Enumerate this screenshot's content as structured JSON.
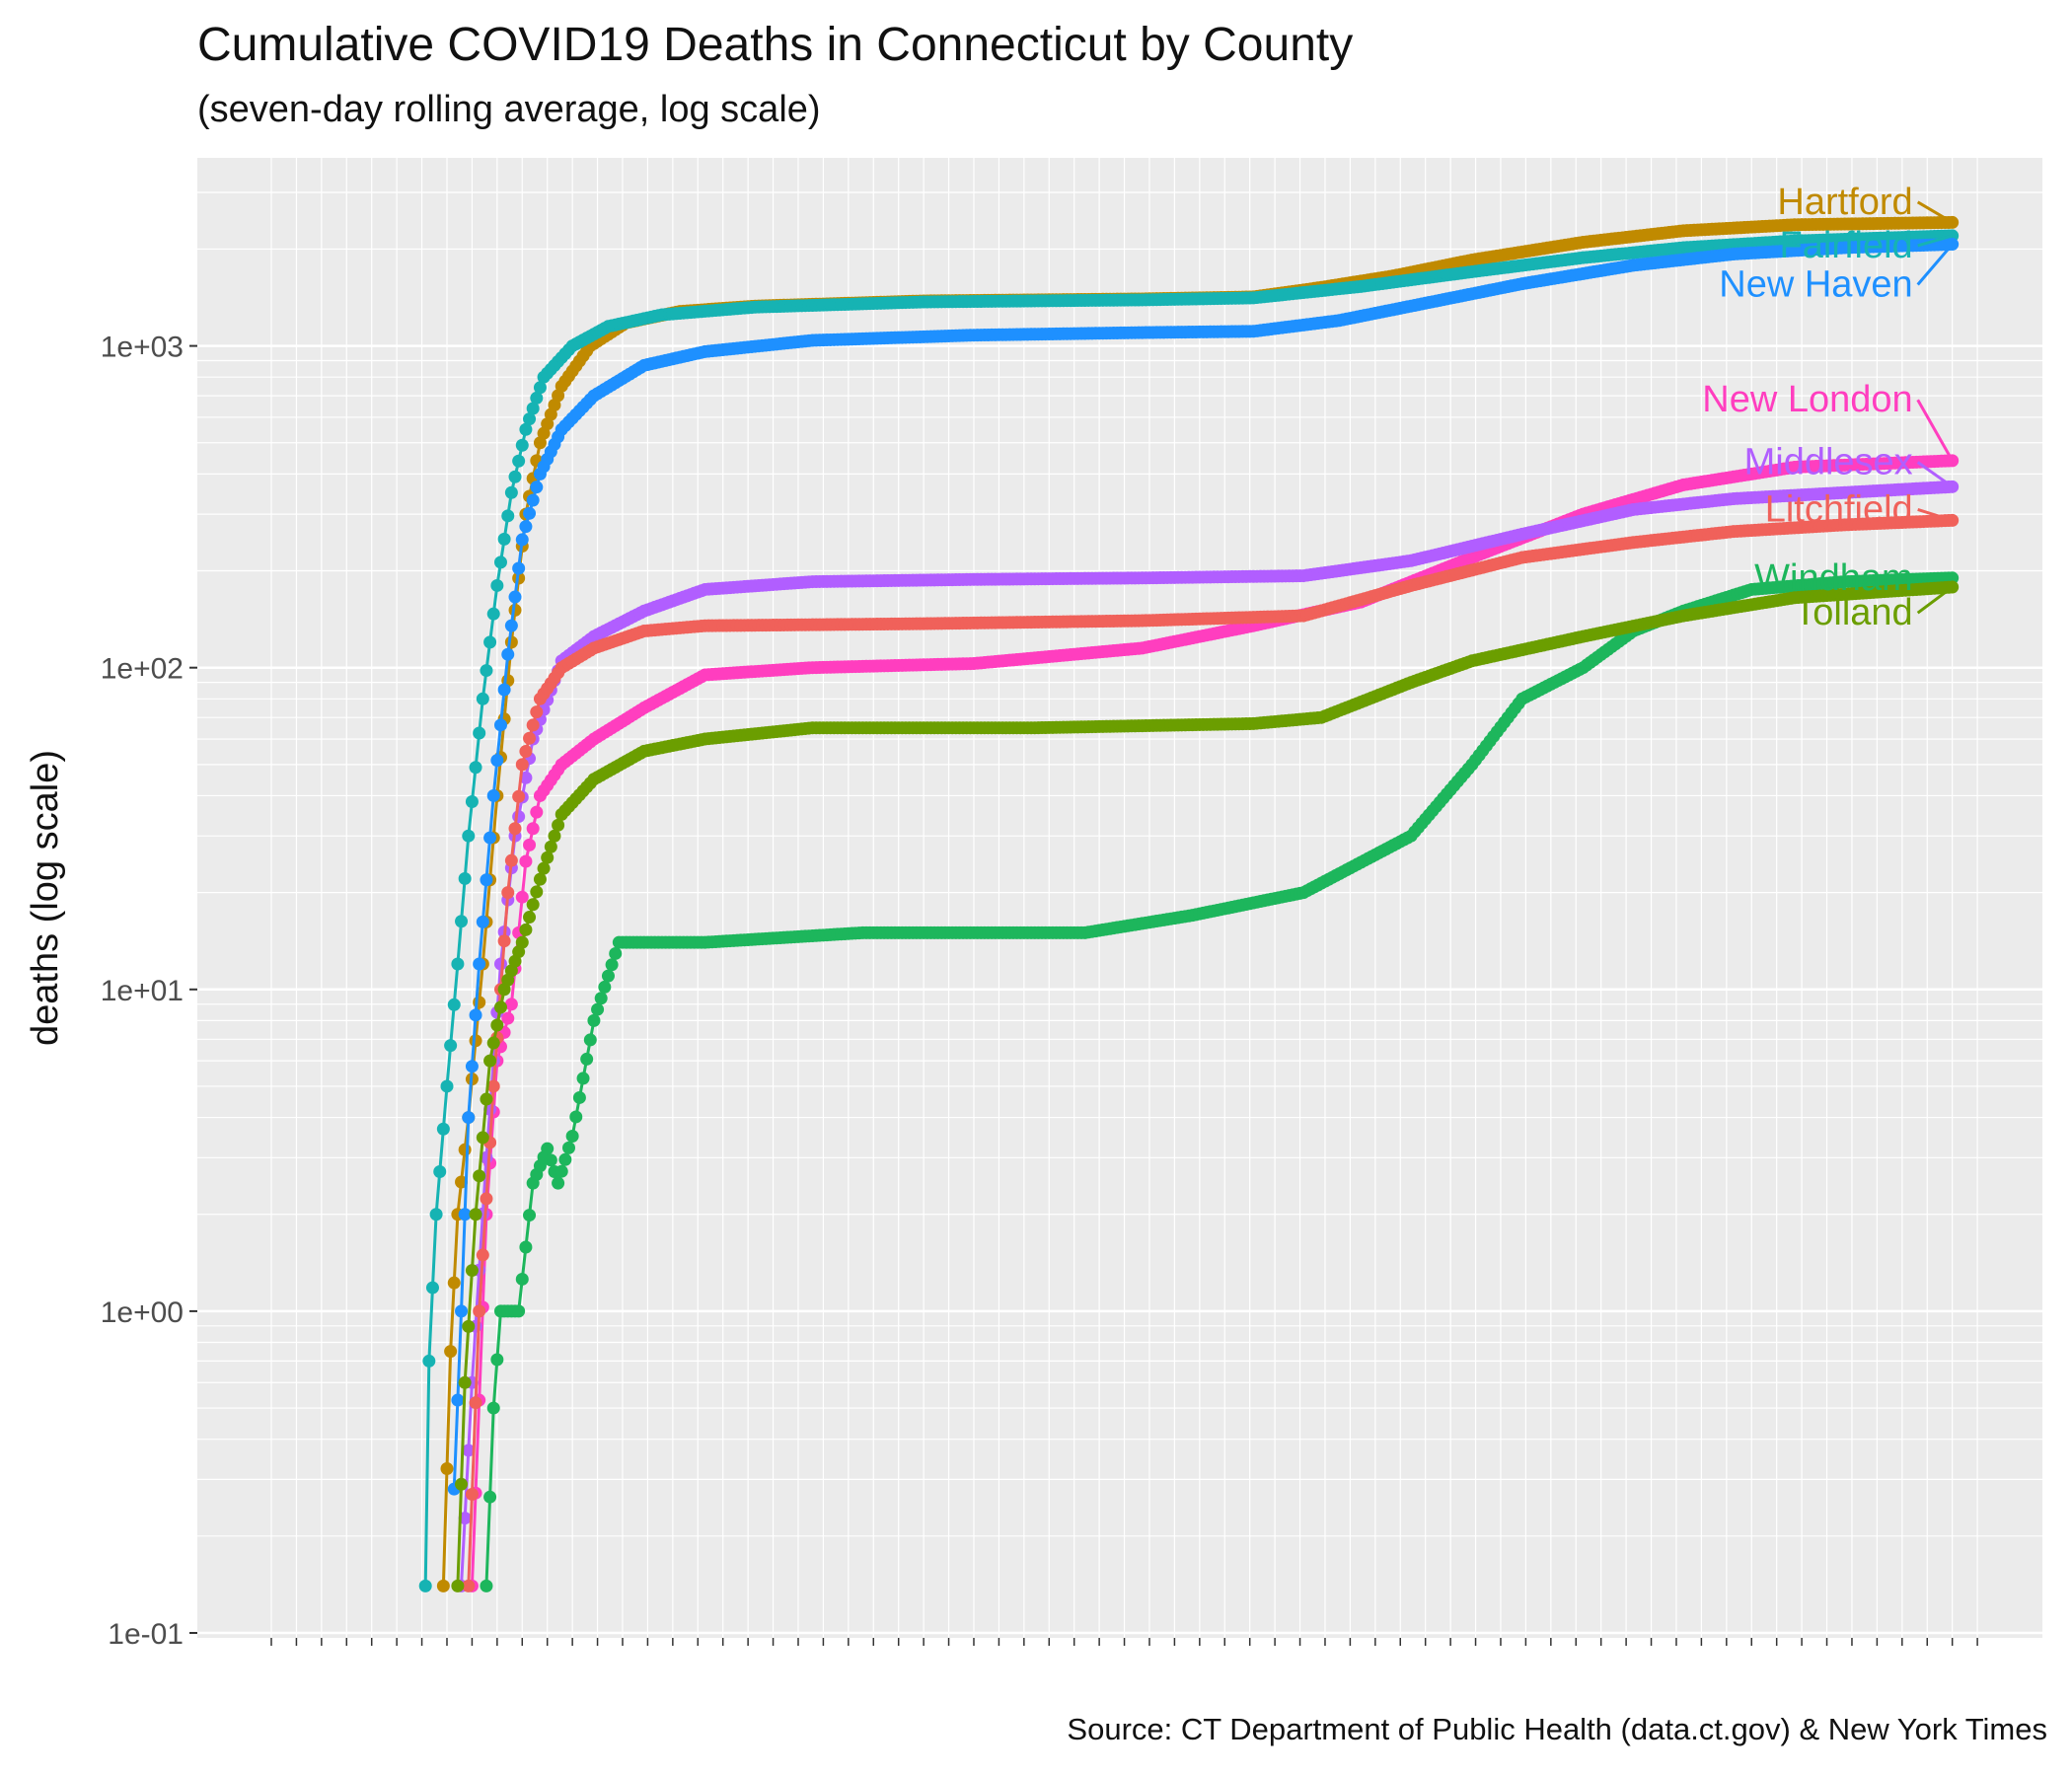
{
  "title": "Cumulative COVID19 Deaths in Connecticut by County",
  "subtitle": "(seven-day rolling average, log scale)",
  "caption": "Source: CT Department of Public Health (data.ct.gov) & New York Times",
  "chart_data": {
    "type": "line",
    "title": "Cumulative COVID19 Deaths in Connecticut by County",
    "subtitle": "(seven-day rolling average, log scale)",
    "ylabel": "deaths (log scale)",
    "xlabel": "",
    "y_scale": "log",
    "ylim": [
      0.1,
      3000
    ],
    "y_ticks": [
      0.1,
      1,
      10,
      100,
      1000
    ],
    "y_tick_labels": [
      "1e-01",
      "1e+00",
      "1e+01",
      "1e+02",
      "1e+03"
    ],
    "xlim": [
      "2020-02-01",
      "2021-05-25"
    ],
    "x_tick_labels_overlapping": true,
    "grid": true,
    "legend": "direct labels at right end of lines",
    "series": [
      {
        "name": "Hartford",
        "color": "#C08A00",
        "label_anchor_value": 2800,
        "points": [
          [
            "2020-03-20",
            0.14
          ],
          [
            "2020-03-22",
            0.75
          ],
          [
            "2020-03-24",
            2
          ],
          [
            "2020-03-27",
            4
          ],
          [
            "2020-03-31",
            12
          ],
          [
            "2020-04-04",
            40
          ],
          [
            "2020-04-08",
            120
          ],
          [
            "2020-04-12",
            300
          ],
          [
            "2020-04-16",
            500
          ],
          [
            "2020-04-22",
            750
          ],
          [
            "2020-04-30",
            1000
          ],
          [
            "2020-05-10",
            1180
          ],
          [
            "2020-05-25",
            1280
          ],
          [
            "2020-06-15",
            1330
          ],
          [
            "2020-08-01",
            1380
          ],
          [
            "2020-10-01",
            1400
          ],
          [
            "2020-11-01",
            1420
          ],
          [
            "2020-11-20",
            1520
          ],
          [
            "2020-12-10",
            1650
          ],
          [
            "2021-01-01",
            1850
          ],
          [
            "2021-02-01",
            2100
          ],
          [
            "2021-03-01",
            2280
          ],
          [
            "2021-04-01",
            2380
          ],
          [
            "2021-05-15",
            2420
          ]
        ]
      },
      {
        "name": "Fairfield",
        "color": "#16B3B3",
        "label_anchor_value": 2050,
        "points": [
          [
            "2020-03-15",
            0.14
          ],
          [
            "2020-03-16",
            0.7
          ],
          [
            "2020-03-18",
            2
          ],
          [
            "2020-03-21",
            5
          ],
          [
            "2020-03-24",
            12
          ],
          [
            "2020-03-27",
            30
          ],
          [
            "2020-03-31",
            80
          ],
          [
            "2020-04-04",
            180
          ],
          [
            "2020-04-08",
            350
          ],
          [
            "2020-04-12",
            550
          ],
          [
            "2020-04-17",
            800
          ],
          [
            "2020-04-25",
            1000
          ],
          [
            "2020-05-05",
            1150
          ],
          [
            "2020-05-20",
            1250
          ],
          [
            "2020-06-15",
            1320
          ],
          [
            "2020-08-01",
            1370
          ],
          [
            "2020-10-01",
            1390
          ],
          [
            "2020-11-01",
            1410
          ],
          [
            "2020-12-01",
            1530
          ],
          [
            "2021-01-01",
            1700
          ],
          [
            "2021-02-01",
            1880
          ],
          [
            "2021-03-01",
            2020
          ],
          [
            "2021-04-01",
            2120
          ],
          [
            "2021-05-15",
            2200
          ]
        ]
      },
      {
        "name": "New Haven",
        "color": "#1E90FF",
        "label_anchor_value": 1550,
        "points": [
          [
            "2020-03-23",
            0.28
          ],
          [
            "2020-03-25",
            1
          ],
          [
            "2020-03-27",
            4
          ],
          [
            "2020-03-30",
            12
          ],
          [
            "2020-04-03",
            40
          ],
          [
            "2020-04-07",
            110
          ],
          [
            "2020-04-11",
            250
          ],
          [
            "2020-04-16",
            400
          ],
          [
            "2020-04-22",
            550
          ],
          [
            "2020-05-01",
            700
          ],
          [
            "2020-05-15",
            870
          ],
          [
            "2020-06-01",
            960
          ],
          [
            "2020-07-01",
            1040
          ],
          [
            "2020-08-15",
            1080
          ],
          [
            "2020-10-01",
            1100
          ],
          [
            "2020-11-01",
            1110
          ],
          [
            "2020-11-25",
            1200
          ],
          [
            "2020-12-15",
            1330
          ],
          [
            "2021-01-15",
            1560
          ],
          [
            "2021-02-15",
            1780
          ],
          [
            "2021-03-15",
            1930
          ],
          [
            "2021-04-15",
            2020
          ],
          [
            "2021-05-15",
            2070
          ]
        ]
      },
      {
        "name": "New London",
        "color": "#FF3EBF",
        "label_anchor_value": 680,
        "points": [
          [
            "2020-03-28",
            0.14
          ],
          [
            "2020-04-01",
            2
          ],
          [
            "2020-04-04",
            6
          ],
          [
            "2020-04-08",
            9
          ],
          [
            "2020-04-12",
            25
          ],
          [
            "2020-04-16",
            40
          ],
          [
            "2020-04-22",
            50
          ],
          [
            "2020-05-01",
            60
          ],
          [
            "2020-05-15",
            75
          ],
          [
            "2020-06-01",
            95
          ],
          [
            "2020-07-01",
            100
          ],
          [
            "2020-08-15",
            103
          ],
          [
            "2020-10-01",
            115
          ],
          [
            "2020-11-01",
            135
          ],
          [
            "2020-12-01",
            160
          ],
          [
            "2021-01-01",
            220
          ],
          [
            "2021-02-01",
            300
          ],
          [
            "2021-03-01",
            370
          ],
          [
            "2021-04-01",
            420
          ],
          [
            "2021-05-15",
            440
          ]
        ]
      },
      {
        "name": "Middlesex",
        "color": "#B15EFF",
        "label_anchor_value": 435,
        "points": [
          [
            "2020-03-25",
            0.14
          ],
          [
            "2020-03-28",
            0.6
          ],
          [
            "2020-04-01",
            3
          ],
          [
            "2020-04-05",
            12
          ],
          [
            "2020-04-09",
            30
          ],
          [
            "2020-04-14",
            60
          ],
          [
            "2020-04-22",
            105
          ],
          [
            "2020-05-01",
            125
          ],
          [
            "2020-05-15",
            150
          ],
          [
            "2020-06-01",
            175
          ],
          [
            "2020-07-01",
            185
          ],
          [
            "2020-08-15",
            188
          ],
          [
            "2020-10-01",
            190
          ],
          [
            "2020-11-15",
            193
          ],
          [
            "2020-12-15",
            215
          ],
          [
            "2021-01-15",
            260
          ],
          [
            "2021-02-15",
            310
          ],
          [
            "2021-03-15",
            335
          ],
          [
            "2021-04-15",
            350
          ],
          [
            "2021-05-15",
            365
          ]
        ]
      },
      {
        "name": "Litchfield",
        "color": "#F0615A",
        "label_anchor_value": 310,
        "points": [
          [
            "2020-03-27",
            0.14
          ],
          [
            "2020-03-30",
            1
          ],
          [
            "2020-04-03",
            5
          ],
          [
            "2020-04-07",
            20
          ],
          [
            "2020-04-11",
            50
          ],
          [
            "2020-04-16",
            80
          ],
          [
            "2020-04-22",
            100
          ],
          [
            "2020-05-01",
            115
          ],
          [
            "2020-05-15",
            130
          ],
          [
            "2020-06-01",
            135
          ],
          [
            "2020-08-01",
            137
          ],
          [
            "2020-10-01",
            140
          ],
          [
            "2020-11-15",
            145
          ],
          [
            "2020-12-15",
            180
          ],
          [
            "2021-01-15",
            220
          ],
          [
            "2021-02-15",
            245
          ],
          [
            "2021-03-15",
            265
          ],
          [
            "2021-04-15",
            278
          ],
          [
            "2021-05-15",
            287
          ]
        ]
      },
      {
        "name": "Windham",
        "color": "#1DB65C",
        "label_anchor_value": 190,
        "points": [
          [
            "2020-04-01",
            0.14
          ],
          [
            "2020-04-03",
            0.5
          ],
          [
            "2020-04-05",
            1
          ],
          [
            "2020-04-10",
            1
          ],
          [
            "2020-04-14",
            2.5
          ],
          [
            "2020-04-18",
            3.2
          ],
          [
            "2020-04-21",
            2.5
          ],
          [
            "2020-04-25",
            3.5
          ],
          [
            "2020-05-01",
            8
          ],
          [
            "2020-05-08",
            14
          ],
          [
            "2020-06-01",
            14
          ],
          [
            "2020-07-15",
            15
          ],
          [
            "2020-09-15",
            15
          ],
          [
            "2020-10-15",
            17
          ],
          [
            "2020-11-15",
            20
          ],
          [
            "2020-12-15",
            30
          ],
          [
            "2021-01-01",
            50
          ],
          [
            "2021-01-15",
            80
          ],
          [
            "2021-02-01",
            100
          ],
          [
            "2021-02-15",
            130
          ],
          [
            "2021-03-01",
            150
          ],
          [
            "2021-03-20",
            175
          ],
          [
            "2021-04-15",
            185
          ],
          [
            "2021-05-15",
            190
          ]
        ]
      },
      {
        "name": "Tolland",
        "color": "#6B9E00",
        "label_anchor_value": 148,
        "points": [
          [
            "2020-03-24",
            0.14
          ],
          [
            "2020-03-26",
            0.6
          ],
          [
            "2020-03-29",
            2
          ],
          [
            "2020-04-02",
            6
          ],
          [
            "2020-04-06",
            10
          ],
          [
            "2020-04-11",
            14
          ],
          [
            "2020-04-16",
            22
          ],
          [
            "2020-04-22",
            35
          ],
          [
            "2020-05-01",
            45
          ],
          [
            "2020-05-15",
            55
          ],
          [
            "2020-06-01",
            60
          ],
          [
            "2020-07-01",
            65
          ],
          [
            "2020-09-01",
            65
          ],
          [
            "2020-11-01",
            67
          ],
          [
            "2020-11-20",
            70
          ],
          [
            "2020-12-15",
            90
          ],
          [
            "2021-01-01",
            105
          ],
          [
            "2021-02-01",
            125
          ],
          [
            "2021-03-01",
            145
          ],
          [
            "2021-04-01",
            165
          ],
          [
            "2021-05-15",
            178
          ]
        ]
      }
    ]
  }
}
